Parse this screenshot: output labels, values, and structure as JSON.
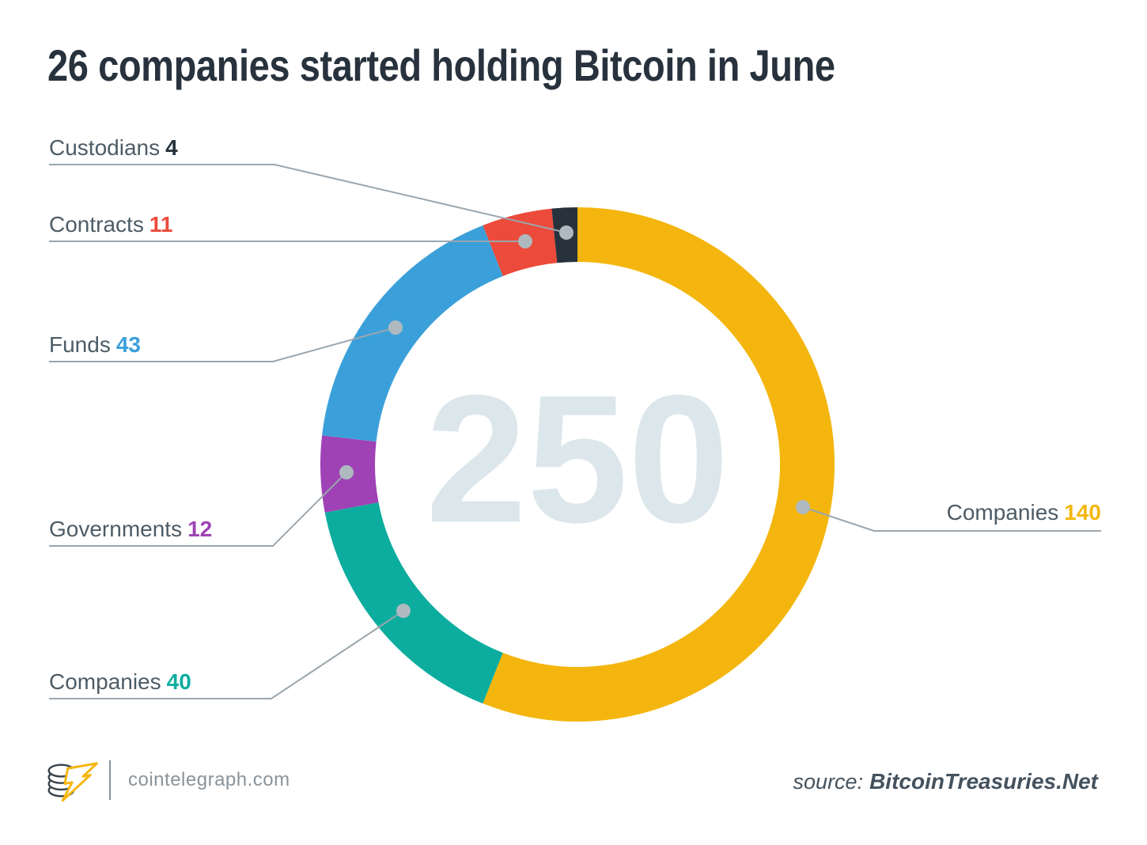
{
  "title": "26 companies started holding Bitcoin in June",
  "chart_data": {
    "type": "pie",
    "subtype": "donut",
    "title": "26 companies started holding Bitcoin in June",
    "center_value": "250",
    "total": 250,
    "direction": "clockwise",
    "start_angle_deg": 0,
    "legend_position": "callouts",
    "categories": [
      "Companies",
      "Companies",
      "Governments",
      "Funds",
      "Contracts",
      "Custodians"
    ],
    "values": [
      140,
      40,
      12,
      43,
      11,
      4
    ],
    "segments": [
      {
        "label": "Companies",
        "value": 140,
        "color": "#F4B60E"
      },
      {
        "label": "Companies",
        "value": 40,
        "color": "#0CAD9E"
      },
      {
        "label": "Governments",
        "value": 12,
        "color": "#9F42B6"
      },
      {
        "label": "Funds",
        "value": 43,
        "color": "#3BA0DA"
      },
      {
        "label": "Contracts",
        "value": 11,
        "color": "#EC4A3A"
      },
      {
        "label": "Custodians",
        "value": 4,
        "color": "#27323D"
      }
    ]
  },
  "colors": {
    "background": "#FFFFFF",
    "title_text": "#27323D",
    "label_text": "#4D5C66",
    "leader_line": "#9AA6AE",
    "leader_dot": "#AFB9C0",
    "center_value_text": "#DCE7EB",
    "footer_text": "#8A939A",
    "source_text": "#44525E",
    "logo_coin_outline": "#39434B",
    "logo_bolt": "#F4B60E"
  },
  "footer": {
    "brand": "cointelegraph.com",
    "source_prefix": "source:",
    "source_name": "BitcoinTreasuries.Net"
  }
}
